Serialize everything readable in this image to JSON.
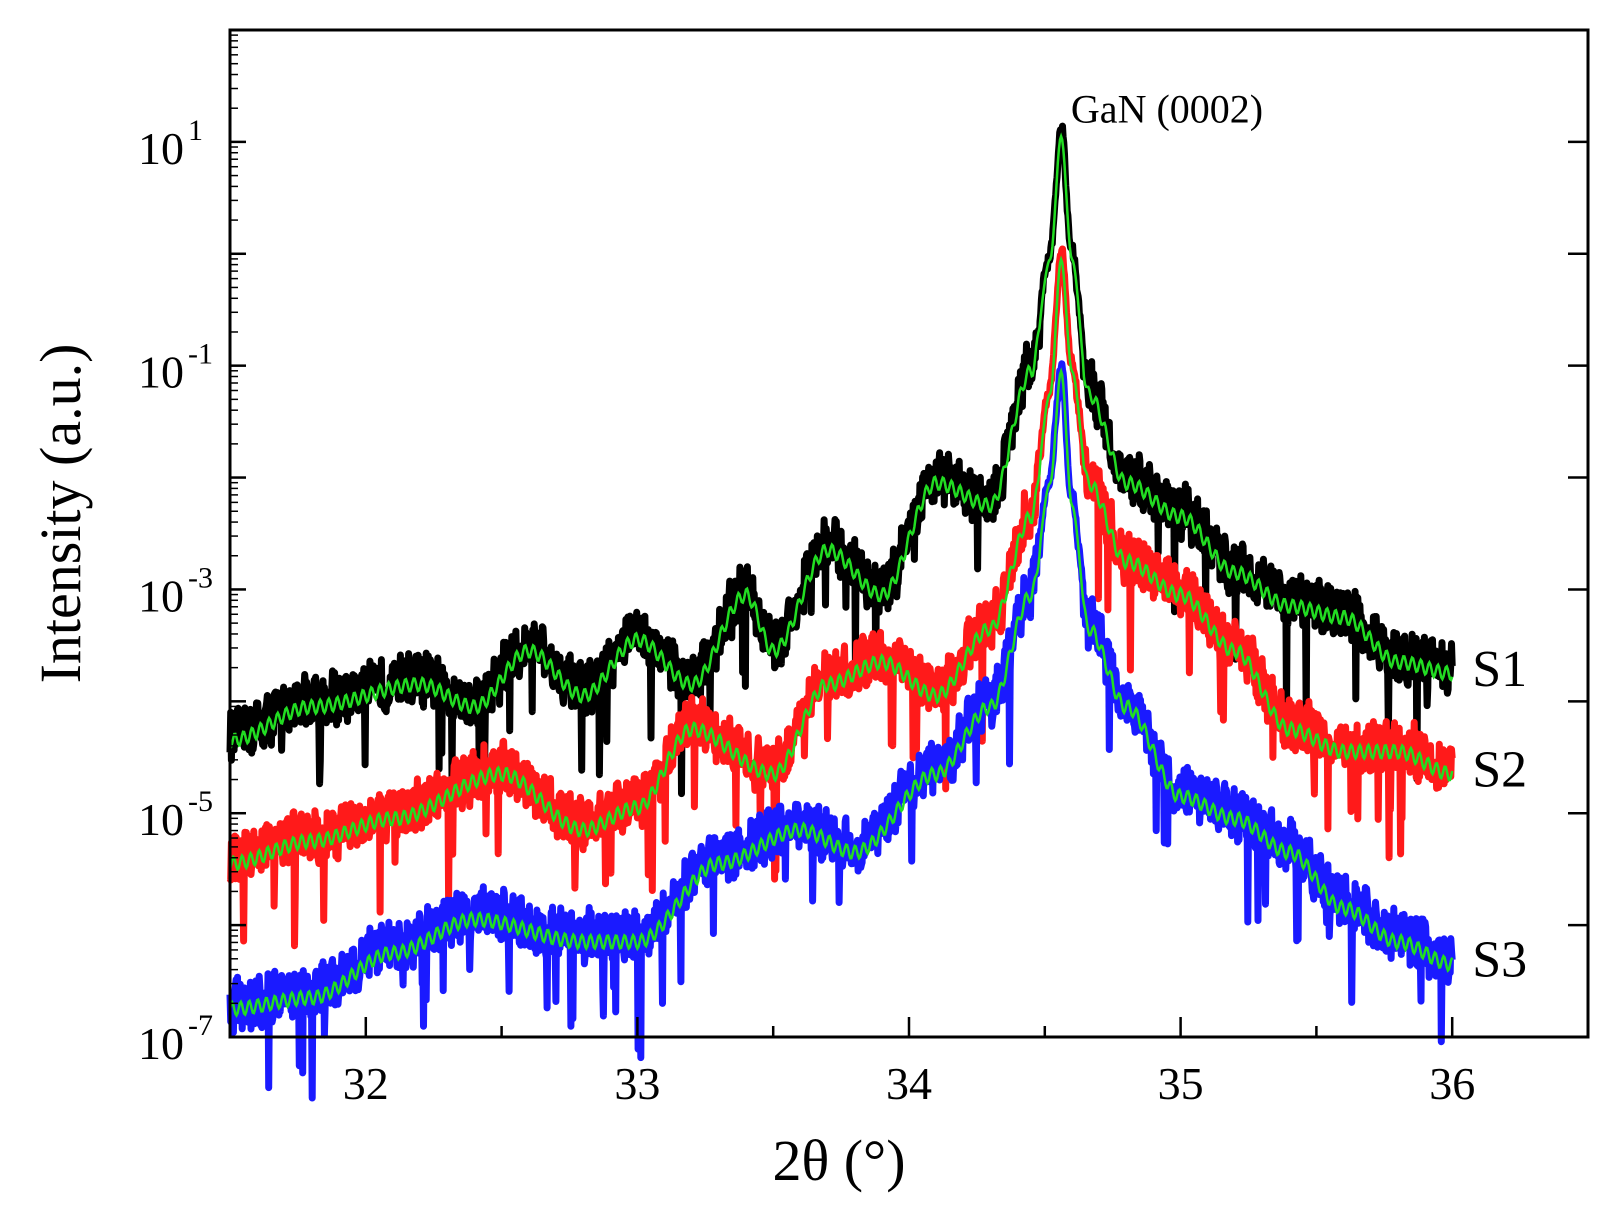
{
  "chart_data": {
    "type": "line",
    "title": "",
    "xlabel": "2θ (°)",
    "ylabel": "Intensity (a.u.)",
    "y_scale": "log",
    "xlim": [
      31.5,
      36.5
    ],
    "ylim_exp": [
      -7,
      2
    ],
    "x_ticks": [
      {
        "value": 32,
        "label": "32"
      },
      {
        "value": 33,
        "label": "33"
      },
      {
        "value": 34,
        "label": "34"
      },
      {
        "value": 35,
        "label": "35"
      },
      {
        "value": 36,
        "label": "36"
      }
    ],
    "y_ticks": [
      {
        "exp": 1,
        "base": "10",
        "power": "1"
      },
      {
        "exp": -1,
        "base": "10",
        "power": "-1"
      },
      {
        "exp": -3,
        "base": "10",
        "power": "-3"
      },
      {
        "exp": -5,
        "base": "10",
        "power": "-5"
      },
      {
        "exp": -7,
        "base": "10",
        "power": "-7"
      }
    ],
    "annotation": {
      "text": "GaN (0002)",
      "x": 34.95,
      "y_exp": 1.3
    },
    "peak_center": 34.56,
    "series": [
      {
        "name": "S1",
        "measured_color": "#000000",
        "fit_color": "#22dd22",
        "points": [
          [
            31.5,
            -4.3
          ],
          [
            31.8,
            -4.0
          ],
          [
            32.2,
            -3.8
          ],
          [
            32.4,
            -4.0
          ],
          [
            32.6,
            -3.5
          ],
          [
            32.8,
            -3.9
          ],
          [
            33.0,
            -3.4
          ],
          [
            33.2,
            -3.8
          ],
          [
            33.4,
            -3.0
          ],
          [
            33.5,
            -3.5
          ],
          [
            33.7,
            -2.6
          ],
          [
            33.9,
            -3.0
          ],
          [
            34.1,
            -2.0
          ],
          [
            34.3,
            -2.2
          ],
          [
            34.45,
            -1.0
          ],
          [
            34.52,
            0.0
          ],
          [
            34.56,
            1.1
          ],
          [
            34.6,
            0.0
          ],
          [
            34.66,
            -1.2
          ],
          [
            34.8,
            -2.0
          ],
          [
            35.0,
            -2.3
          ],
          [
            35.2,
            -2.8
          ],
          [
            35.4,
            -3.1
          ],
          [
            35.6,
            -3.2
          ],
          [
            35.8,
            -3.6
          ],
          [
            36.0,
            -3.7
          ]
        ]
      },
      {
        "name": "S2",
        "measured_color": "#ff1a1a",
        "fit_color": "#22dd22",
        "points": [
          [
            31.5,
            -5.4
          ],
          [
            31.8,
            -5.2
          ],
          [
            32.1,
            -5.0
          ],
          [
            32.5,
            -4.6
          ],
          [
            32.8,
            -5.1
          ],
          [
            33.0,
            -4.9
          ],
          [
            33.2,
            -4.2
          ],
          [
            33.5,
            -4.6
          ],
          [
            33.7,
            -3.8
          ],
          [
            33.9,
            -3.6
          ],
          [
            34.1,
            -3.9
          ],
          [
            34.3,
            -3.3
          ],
          [
            34.45,
            -2.3
          ],
          [
            34.52,
            -1.2
          ],
          [
            34.56,
            0.0
          ],
          [
            34.6,
            -1.0
          ],
          [
            34.66,
            -2.0
          ],
          [
            34.8,
            -2.7
          ],
          [
            35.0,
            -3.0
          ],
          [
            35.2,
            -3.5
          ],
          [
            35.4,
            -4.2
          ],
          [
            35.6,
            -4.4
          ],
          [
            35.8,
            -4.4
          ],
          [
            36.0,
            -4.6
          ]
        ]
      },
      {
        "name": "S3",
        "measured_color": "#1a1aff",
        "fit_color": "#22dd22",
        "points": [
          [
            31.5,
            -6.7
          ],
          [
            31.8,
            -6.6
          ],
          [
            32.1,
            -6.2
          ],
          [
            32.4,
            -5.9
          ],
          [
            32.8,
            -6.1
          ],
          [
            33.0,
            -6.1
          ],
          [
            33.3,
            -5.4
          ],
          [
            33.6,
            -5.1
          ],
          [
            33.8,
            -5.3
          ],
          [
            34.1,
            -4.6
          ],
          [
            34.3,
            -4.0
          ],
          [
            34.45,
            -3.0
          ],
          [
            34.52,
            -2.0
          ],
          [
            34.56,
            -1.0
          ],
          [
            34.6,
            -2.2
          ],
          [
            34.66,
            -3.3
          ],
          [
            34.8,
            -4.0
          ],
          [
            35.0,
            -4.8
          ],
          [
            35.2,
            -5.0
          ],
          [
            35.4,
            -5.3
          ],
          [
            35.6,
            -5.8
          ],
          [
            35.8,
            -6.1
          ],
          [
            36.0,
            -6.3
          ]
        ]
      }
    ]
  }
}
